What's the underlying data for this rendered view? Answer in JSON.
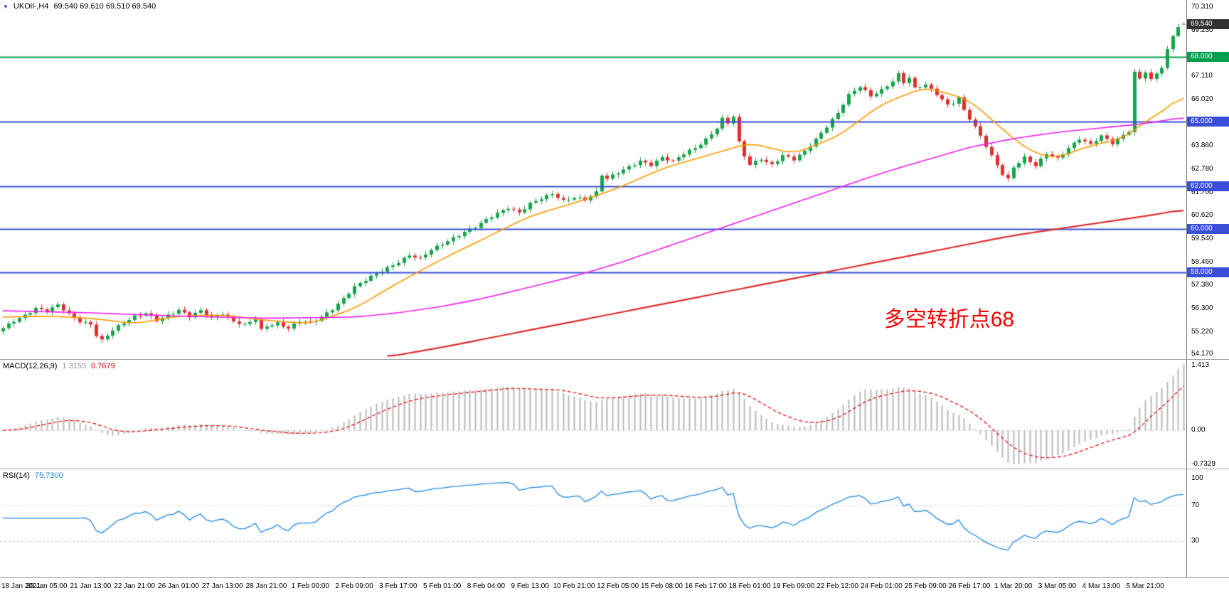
{
  "header": {
    "symbol": "UKOil-,H4",
    "ohlc": "69.540 69.610 69.510 69.540"
  },
  "chart_data": {
    "type": "candlestick",
    "symbol": "UKOil-",
    "timeframe": "H4",
    "title": "UKOil-,H4 69.540 69.610 69.510 69.540",
    "current": {
      "open": "69.540",
      "high": "69.610",
      "low": "69.510",
      "close": "69.540"
    },
    "price_axis": {
      "y_max": 70.65,
      "y_min": 53.95,
      "ticks": [
        "70.310",
        "69.230",
        "67.110",
        "66.020",
        "63.860",
        "62.780",
        "61.700",
        "60.620",
        "59.540",
        "58.460",
        "57.380",
        "56.300",
        "55.220",
        "54.170"
      ]
    },
    "current_price_badge": {
      "label": "69.540",
      "bg": "#333333"
    },
    "levels": [
      {
        "label": "68.000",
        "value": 68.0,
        "color": "#009f4e",
        "width": 2
      },
      {
        "label": "65.000",
        "value": 65.0,
        "color": "#3a4fd8",
        "width": 2
      },
      {
        "label": "62.000",
        "value": 62.0,
        "color": "#3a4fd8",
        "width": 2
      },
      {
        "label": "60.000",
        "value": 60.0,
        "color": "#3a4fd8",
        "width": 2
      },
      {
        "label": "58.000",
        "value": 58.0,
        "color": "#3a4fd8",
        "width": 2
      }
    ],
    "annotation": {
      "text": "多空转折点68",
      "color": "#f40000",
      "x_fraction": 0.8,
      "price": 55.9
    },
    "candles": {
      "count": 216,
      "up_color": "#17a44c",
      "down_color": "#e12f2f",
      "close_anchors": [
        [
          0,
          55.35
        ],
        [
          2,
          55.7
        ],
        [
          4,
          56.0
        ],
        [
          6,
          56.35
        ],
        [
          8,
          56.2
        ],
        [
          10,
          56.45
        ],
        [
          12,
          56.0
        ],
        [
          14,
          55.7
        ],
        [
          16,
          55.6
        ],
        [
          17,
          55.1
        ],
        [
          18,
          54.85
        ],
        [
          20,
          55.3
        ],
        [
          22,
          55.6
        ],
        [
          24,
          55.9
        ],
        [
          26,
          56.1
        ],
        [
          28,
          55.8
        ],
        [
          30,
          56.0
        ],
        [
          32,
          56.2
        ],
        [
          34,
          55.9
        ],
        [
          36,
          56.2
        ],
        [
          38,
          55.9
        ],
        [
          40,
          56.1
        ],
        [
          42,
          55.7
        ],
        [
          44,
          55.5
        ],
        [
          46,
          55.8
        ],
        [
          47,
          55.3
        ],
        [
          48,
          55.5
        ],
        [
          50,
          55.65
        ],
        [
          52,
          55.4
        ],
        [
          54,
          55.7
        ],
        [
          56,
          55.6
        ],
        [
          58,
          55.9
        ],
        [
          60,
          56.3
        ],
        [
          62,
          56.8
        ],
        [
          64,
          57.3
        ],
        [
          66,
          57.6
        ],
        [
          68,
          57.9
        ],
        [
          70,
          58.2
        ],
        [
          72,
          58.5
        ],
        [
          74,
          58.8
        ],
        [
          76,
          58.6
        ],
        [
          78,
          59.0
        ],
        [
          80,
          59.3
        ],
        [
          82,
          59.6
        ],
        [
          84,
          59.9
        ],
        [
          86,
          60.1
        ],
        [
          88,
          60.4
        ],
        [
          90,
          60.7
        ],
        [
          92,
          61.0
        ],
        [
          94,
          60.8
        ],
        [
          96,
          61.2
        ],
        [
          98,
          61.4
        ],
        [
          100,
          61.6
        ],
        [
          102,
          61.3
        ],
        [
          104,
          61.5
        ],
        [
          106,
          61.4
        ],
        [
          108,
          61.7
        ],
        [
          109,
          62.5
        ],
        [
          110,
          62.3
        ],
        [
          112,
          62.6
        ],
        [
          114,
          62.9
        ],
        [
          116,
          63.2
        ],
        [
          118,
          63.0
        ],
        [
          120,
          63.3
        ],
        [
          122,
          63.1
        ],
        [
          124,
          63.5
        ],
        [
          126,
          63.8
        ],
        [
          128,
          64.2
        ],
        [
          130,
          64.7
        ],
        [
          131,
          65.1
        ],
        [
          132,
          64.9
        ],
        [
          133,
          65.2
        ],
        [
          134,
          64.0
        ],
        [
          135,
          63.4
        ],
        [
          136,
          63.0
        ],
        [
          138,
          63.3
        ],
        [
          140,
          63.0
        ],
        [
          142,
          63.4
        ],
        [
          144,
          63.2
        ],
        [
          146,
          63.6
        ],
        [
          148,
          64.2
        ],
        [
          150,
          64.8
        ],
        [
          152,
          65.4
        ],
        [
          154,
          66.2
        ],
        [
          156,
          66.6
        ],
        [
          158,
          66.2
        ],
        [
          160,
          66.5
        ],
        [
          162,
          66.9
        ],
        [
          163,
          67.2
        ],
        [
          164,
          66.8
        ],
        [
          165,
          67.0
        ],
        [
          166,
          66.5
        ],
        [
          168,
          66.7
        ],
        [
          170,
          66.3
        ],
        [
          172,
          65.8
        ],
        [
          173,
          65.9
        ],
        [
          174,
          66.1
        ],
        [
          175,
          65.5
        ],
        [
          176,
          65.1
        ],
        [
          178,
          64.3
        ],
        [
          180,
          63.4
        ],
        [
          182,
          62.6
        ],
        [
          183,
          62.35
        ],
        [
          184,
          62.9
        ],
        [
          186,
          63.3
        ],
        [
          188,
          62.9
        ],
        [
          190,
          63.5
        ],
        [
          192,
          63.3
        ],
        [
          194,
          63.8
        ],
        [
          196,
          64.2
        ],
        [
          198,
          63.9
        ],
        [
          200,
          64.3
        ],
        [
          202,
          64.0
        ],
        [
          204,
          64.4
        ],
        [
          205,
          64.6
        ],
        [
          206,
          67.3
        ],
        [
          207,
          67.0
        ],
        [
          208,
          67.3
        ],
        [
          209,
          66.9
        ],
        [
          210,
          67.2
        ],
        [
          211,
          67.5
        ],
        [
          212,
          68.3
        ],
        [
          213,
          69.0
        ],
        [
          214,
          69.45
        ],
        [
          215,
          69.54
        ]
      ]
    },
    "moving_averages": [
      {
        "name": "ma-fast",
        "color": "#ff9800",
        "width": 1.6,
        "anchors": [
          [
            0,
            55.9
          ],
          [
            8,
            55.95
          ],
          [
            16,
            55.85
          ],
          [
            24,
            55.6
          ],
          [
            32,
            55.95
          ],
          [
            40,
            56.0
          ],
          [
            48,
            55.75
          ],
          [
            56,
            55.6
          ],
          [
            64,
            56.3
          ],
          [
            72,
            57.5
          ],
          [
            80,
            58.6
          ],
          [
            88,
            59.6
          ],
          [
            96,
            60.6
          ],
          [
            104,
            61.2
          ],
          [
            112,
            61.9
          ],
          [
            120,
            62.8
          ],
          [
            128,
            63.4
          ],
          [
            136,
            64.0
          ],
          [
            144,
            63.5
          ],
          [
            152,
            64.3
          ],
          [
            160,
            65.8
          ],
          [
            168,
            66.6
          ],
          [
            176,
            66.0
          ],
          [
            184,
            64.2
          ],
          [
            188,
            63.5
          ],
          [
            192,
            63.3
          ],
          [
            196,
            63.7
          ],
          [
            200,
            64.0
          ],
          [
            204,
            64.2
          ],
          [
            208,
            65.0
          ],
          [
            212,
            65.6
          ],
          [
            215,
            66.3
          ]
        ]
      },
      {
        "name": "ma-mid",
        "color": "#f020f0",
        "width": 1.6,
        "anchors": [
          [
            0,
            56.2
          ],
          [
            16,
            56.1
          ],
          [
            32,
            55.95
          ],
          [
            48,
            55.85
          ],
          [
            64,
            55.9
          ],
          [
            72,
            56.1
          ],
          [
            80,
            56.4
          ],
          [
            88,
            56.8
          ],
          [
            96,
            57.3
          ],
          [
            104,
            57.8
          ],
          [
            112,
            58.4
          ],
          [
            120,
            59.1
          ],
          [
            128,
            59.8
          ],
          [
            136,
            60.5
          ],
          [
            144,
            61.2
          ],
          [
            152,
            61.9
          ],
          [
            160,
            62.6
          ],
          [
            168,
            63.2
          ],
          [
            176,
            63.8
          ],
          [
            184,
            64.2
          ],
          [
            192,
            64.5
          ],
          [
            200,
            64.7
          ],
          [
            208,
            64.9
          ],
          [
            215,
            65.2
          ]
        ]
      },
      {
        "name": "ma-slow",
        "color": "#dd2c2c",
        "width": 2.2,
        "anchors": [
          [
            70,
            54.05
          ],
          [
            80,
            54.5
          ],
          [
            88,
            54.9
          ],
          [
            96,
            55.3
          ],
          [
            104,
            55.7
          ],
          [
            112,
            56.1
          ],
          [
            120,
            56.5
          ],
          [
            128,
            56.9
          ],
          [
            136,
            57.3
          ],
          [
            144,
            57.7
          ],
          [
            152,
            58.1
          ],
          [
            160,
            58.5
          ],
          [
            168,
            58.9
          ],
          [
            176,
            59.3
          ],
          [
            184,
            59.7
          ],
          [
            192,
            60.0
          ],
          [
            200,
            60.3
          ],
          [
            208,
            60.6
          ],
          [
            215,
            60.9
          ]
        ]
      }
    ],
    "macd": {
      "label": "MACD(12,26,9)",
      "main_value": "1.3155",
      "signal_value": "0.7679",
      "params": [
        12,
        26,
        9
      ],
      "axis": [
        "1.413",
        "0.00",
        "-0.7329"
      ],
      "axis_max": 1.413,
      "axis_min": -0.7329,
      "histogram_color": "#b8b8b8",
      "signal_color": "#e00000"
    },
    "rsi": {
      "label": "RSI(14)",
      "value": "75.7300",
      "period": 14,
      "axis": [
        "100",
        "70",
        "30"
      ],
      "levels": [
        70,
        30
      ],
      "line_color": "#1e88e5"
    },
    "time_axis": {
      "step": 8,
      "labels": [
        "18 Jan 2021",
        "20 Jan 05:00",
        "21 Jan 13:00",
        "22 Jan 21:00",
        "26 Jan 01:00",
        "27 Jan 13:00",
        "28 Jan 21:00",
        "1 Feb 00:00",
        "2 Feb 09:00",
        "3 Feb 17:00",
        "5 Feb 01:00",
        "8 Feb 04:00",
        "9 Feb 13:00",
        "10 Feb 21:00",
        "12 Feb 05:00",
        "15 Feb 08:00",
        "16 Feb 17:00",
        "18 Feb 01:00",
        "19 Feb 09:00",
        "22 Feb 12:00",
        "24 Feb 01:00",
        "25 Feb 09:00",
        "26 Feb 17:00",
        "1 Mar 20:00",
        "3 Mar 05:00",
        "4 Mar 13:00",
        "5 Mar 21:00"
      ]
    }
  }
}
